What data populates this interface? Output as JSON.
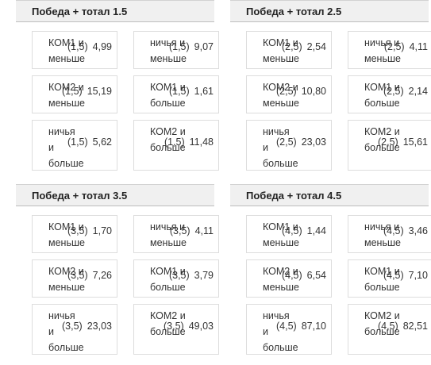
{
  "groups": [
    {
      "title": "Победа + тотал 1.5",
      "cells": [
        {
          "label": "КОМ1 и\nменьше",
          "param": "(1,5)",
          "odds": "4,99"
        },
        {
          "label": "ничья и\nменьше",
          "param": "(1,5)",
          "odds": "9,07"
        },
        {
          "label": "КОМ2 и\nменьше",
          "param": "(1,5)",
          "odds": "15,19"
        },
        {
          "label": "КОМ1 и\nбольше",
          "param": "(1,5)",
          "odds": "1,61"
        },
        {
          "label": "ничья\nи\nбольше",
          "param": "(1,5)",
          "odds": "5,62"
        },
        {
          "label": "КОМ2 и\nбольше",
          "param": "(1,5)",
          "odds": "11,48"
        }
      ]
    },
    {
      "title": "Победа + тотал 2.5",
      "cells": [
        {
          "label": "КОМ1 и\nменьше",
          "param": "(2,5)",
          "odds": "2,54"
        },
        {
          "label": "ничья и\nменьше",
          "param": "(2,5)",
          "odds": "4,11"
        },
        {
          "label": "КОМ2 и\nменьше",
          "param": "(2,5)",
          "odds": "10,80"
        },
        {
          "label": "КОМ1 и\nбольше",
          "param": "(2,5)",
          "odds": "2,14"
        },
        {
          "label": "ничья\nи\nбольше",
          "param": "(2,5)",
          "odds": "23,03"
        },
        {
          "label": "КОМ2 и\nбольше",
          "param": "(2,5)",
          "odds": "15,61"
        }
      ]
    },
    {
      "title": "Победа + тотал 3.5",
      "cells": [
        {
          "label": "КОМ1 и\nменьше",
          "param": "(3,5)",
          "odds": "1,70"
        },
        {
          "label": "ничья и\nменьше",
          "param": "(3,5)",
          "odds": "4,11"
        },
        {
          "label": "КОМ2 и\nменьше",
          "param": "(3,5)",
          "odds": "7,26"
        },
        {
          "label": "КОМ1 и\nбольше",
          "param": "(3,5)",
          "odds": "3,79"
        },
        {
          "label": "ничья\nи\nбольше",
          "param": "(3,5)",
          "odds": "23,03"
        },
        {
          "label": "КОМ2 и\nбольше",
          "param": "(3,5)",
          "odds": "49,03"
        }
      ]
    },
    {
      "title": "Победа + тотал 4.5",
      "cells": [
        {
          "label": "КОМ1 и\nменьше",
          "param": "(4,5)",
          "odds": "1,44"
        },
        {
          "label": "ничья и\nменьше",
          "param": "(4,5)",
          "odds": "3,46"
        },
        {
          "label": "КОМ2 и\nменьше",
          "param": "(4,5)",
          "odds": "6,54"
        },
        {
          "label": "КОМ1 и\nбольше",
          "param": "(4,5)",
          "odds": "7,10"
        },
        {
          "label": "ничья\nи\nбольше",
          "param": "(4,5)",
          "odds": "87,10"
        },
        {
          "label": "КОМ2 и\nбольше",
          "param": "(4,5)",
          "odds": "82,51"
        }
      ]
    }
  ]
}
